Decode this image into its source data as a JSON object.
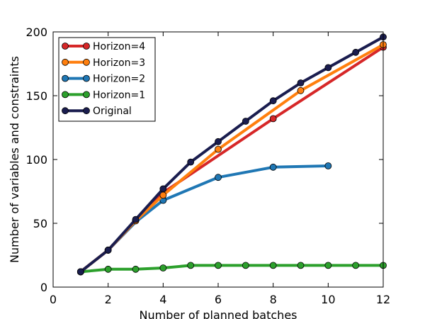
{
  "chart_data": {
    "type": "line",
    "xlabel": "Number of planned batches",
    "ylabel": "Number of variables and constraints",
    "xlim": [
      0,
      12
    ],
    "ylim": [
      0,
      200
    ],
    "xticks": [
      0,
      2,
      4,
      6,
      8,
      10,
      12
    ],
    "yticks": [
      0,
      50,
      100,
      150,
      200
    ],
    "grid": false,
    "legend_position": "top-left",
    "series": [
      {
        "name": "Horizon=4",
        "color": "#d62728",
        "x": [
          1,
          2,
          3,
          4,
          8,
          12
        ],
        "y": [
          12,
          29,
          52,
          74,
          132,
          188
        ],
        "marker_x": [
          1,
          2,
          3,
          4,
          8,
          12
        ],
        "marker_y": [
          12,
          29,
          52,
          74,
          132,
          188
        ]
      },
      {
        "name": "Horizon=3",
        "color": "#ff7f0e",
        "x": [
          1,
          2,
          3,
          4,
          6,
          9,
          12
        ],
        "y": [
          12,
          29,
          52,
          72,
          108,
          154,
          190
        ],
        "marker_x": [
          1,
          2,
          3,
          4,
          6,
          9,
          12
        ],
        "marker_y": [
          12,
          29,
          52,
          72,
          108,
          154,
          190
        ]
      },
      {
        "name": "Horizon=2",
        "color": "#1f77b4",
        "x": [
          1,
          2,
          3,
          4,
          6,
          8,
          10
        ],
        "y": [
          12,
          29,
          51,
          68,
          86,
          94,
          95
        ],
        "marker_x": [
          1,
          2,
          4,
          6,
          8,
          10
        ],
        "marker_y": [
          12,
          29,
          68,
          86,
          94,
          95
        ]
      },
      {
        "name": "Horizon=1",
        "color": "#2ca02c",
        "x": [
          1,
          2,
          3,
          4,
          5,
          6,
          7,
          8,
          9,
          10,
          11,
          12
        ],
        "y": [
          12,
          14,
          14,
          15,
          17,
          17,
          17,
          17,
          17,
          17,
          17,
          17
        ],
        "marker_x": [
          1,
          2,
          3,
          4,
          5,
          6,
          7,
          8,
          9,
          10,
          11,
          12
        ],
        "marker_y": [
          12,
          14,
          14,
          15,
          17,
          17,
          17,
          17,
          17,
          17,
          17,
          17
        ]
      },
      {
        "name": "Original",
        "color": "#1a1d4f",
        "x": [
          1,
          2,
          3,
          4,
          5,
          6,
          7,
          8,
          9,
          10,
          11,
          12
        ],
        "y": [
          12,
          29,
          53,
          77,
          98,
          114,
          130,
          146,
          160,
          172,
          184,
          196
        ],
        "marker_x": [
          1,
          2,
          3,
          4,
          5,
          6,
          7,
          8,
          9,
          10,
          11,
          12
        ],
        "marker_y": [
          12,
          29,
          53,
          77,
          98,
          114,
          130,
          146,
          160,
          172,
          184,
          196
        ]
      }
    ]
  }
}
